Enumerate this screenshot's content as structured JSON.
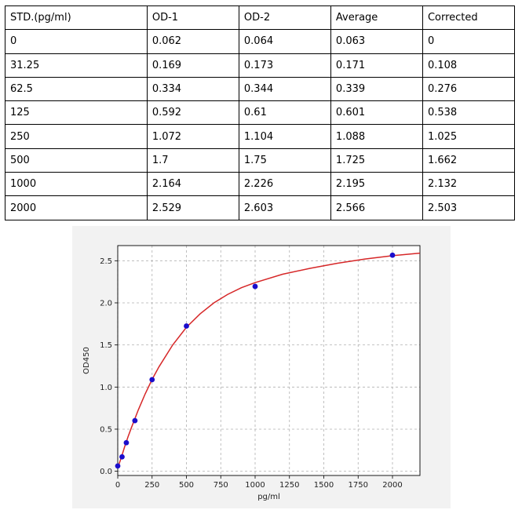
{
  "table": {
    "headers": [
      "STD.(pg/ml)",
      "OD-1",
      "OD-2",
      "Average",
      "Corrected"
    ],
    "rows": [
      [
        "0",
        "0.062",
        "0.064",
        "0.063",
        "0"
      ],
      [
        "31.25",
        "0.169",
        "0.173",
        "0.171",
        "0.108"
      ],
      [
        "62.5",
        "0.334",
        "0.344",
        "0.339",
        "0.276"
      ],
      [
        "125",
        "0.592",
        "0.61",
        "0.601",
        "0.538"
      ],
      [
        "250",
        "1.072",
        "1.104",
        "1.088",
        "1.025"
      ],
      [
        "500",
        "1.7",
        "1.75",
        "1.725",
        "1.662"
      ],
      [
        "1000",
        "2.164",
        "2.226",
        "2.195",
        "2.132"
      ],
      [
        "2000",
        "2.529",
        "2.603",
        "2.566",
        "2.503"
      ]
    ]
  },
  "chart_data": {
    "type": "scatter",
    "title": "",
    "xlabel": "pg/ml",
    "ylabel": "OD450",
    "xlim": [
      0,
      2200
    ],
    "ylim": [
      -0.05,
      2.68
    ],
    "xticks": [
      0,
      250,
      500,
      750,
      1000,
      1250,
      1500,
      1750,
      2000
    ],
    "yticks": [
      0.0,
      0.5,
      1.0,
      1.5,
      2.0,
      2.5
    ],
    "xtick_labels": [
      "0",
      "250",
      "500",
      "750",
      "1000",
      "1250",
      "1500",
      "1750",
      "2000"
    ],
    "ytick_labels": [
      "0.0",
      "0.5",
      "1.0",
      "1.5",
      "2.0",
      "2.5"
    ],
    "grid": true,
    "points": {
      "x": [
        0,
        31.25,
        62.5,
        125,
        250,
        500,
        1000,
        2000
      ],
      "y": [
        0.063,
        0.171,
        0.339,
        0.601,
        1.088,
        1.725,
        2.195,
        2.566
      ]
    },
    "fit_curve": {
      "x": [
        0,
        25,
        50,
        75,
        100,
        150,
        200,
        250,
        300,
        400,
        500,
        600,
        700,
        800,
        900,
        1000,
        1200,
        1400,
        1600,
        1800,
        2000,
        2200
      ],
      "y": [
        0.04,
        0.16,
        0.29,
        0.41,
        0.52,
        0.73,
        0.92,
        1.09,
        1.24,
        1.5,
        1.71,
        1.87,
        2.0,
        2.1,
        2.18,
        2.24,
        2.34,
        2.41,
        2.47,
        2.52,
        2.56,
        2.59
      ]
    },
    "colors": {
      "points": "#1a0dcc",
      "curve": "#d62728",
      "grid": "#b0b0b0",
      "panel": "#f2f2f2",
      "plot_bg": "#ffffff"
    }
  }
}
